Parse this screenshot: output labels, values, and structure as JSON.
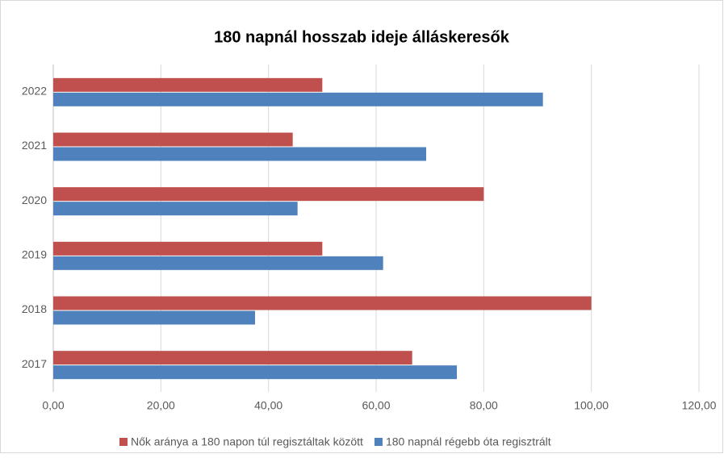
{
  "chart_data": {
    "type": "hbar",
    "title": "180 napnál hosszab ideje álláskeresők",
    "categories": [
      "2017",
      "2018",
      "2019",
      "2020",
      "2021",
      "2022"
    ],
    "series": [
      {
        "name": "Nők aránya a 180 napon túl regisztáltak között",
        "color": "#c0504d",
        "values": [
          66.7,
          100,
          50,
          80,
          44.5,
          50
        ]
      },
      {
        "name": "180 napnál régebb óta regisztrált",
        "color": "#4f81bd",
        "values": [
          75,
          37.5,
          61.3,
          45.4,
          69.3,
          91
        ]
      }
    ],
    "xlim": [
      0,
      120
    ],
    "xticks": [
      {
        "value": 0,
        "label": "0,00"
      },
      {
        "value": 20,
        "label": "20,00"
      },
      {
        "value": 40,
        "label": "40,00"
      },
      {
        "value": 60,
        "label": "60,00"
      },
      {
        "value": 80,
        "label": "80,00"
      },
      {
        "value": 100,
        "label": "100,00"
      },
      {
        "value": 120,
        "label": "120,00"
      }
    ],
    "grid": true,
    "legend": "bottom"
  }
}
